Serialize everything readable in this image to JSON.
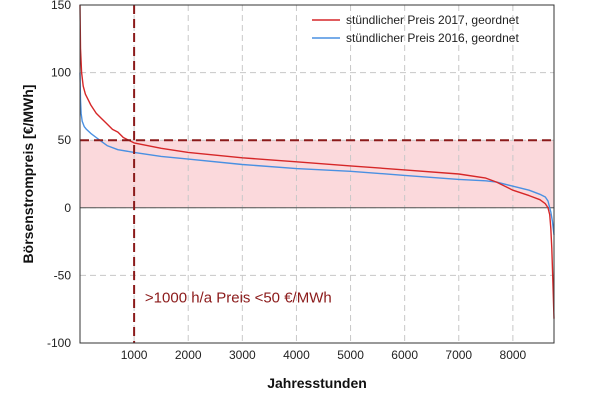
{
  "chart_data": {
    "type": "line",
    "title": "",
    "xlabel": "Jahresstunden",
    "ylabel": "Börsenstrompreis [€/MWh]",
    "xlim": [
      0,
      8760
    ],
    "ylim": [
      -100,
      150
    ],
    "x_ticks": [
      1000,
      2000,
      3000,
      4000,
      5000,
      6000,
      7000,
      8000
    ],
    "x_tick_labels": [
      "1000",
      "2000",
      "3000",
      "4000",
      "5000",
      "6000",
      "7000",
      "8000"
    ],
    "y_ticks": [
      -100,
      -50,
      0,
      50,
      100,
      150
    ],
    "y_tick_labels": [
      "-100",
      "-50",
      "0",
      "50",
      "100",
      "150"
    ],
    "grid": true,
    "legend_position": "top-right",
    "series": [
      {
        "name": "stündlicher Preis 2017, geordnet",
        "color": "#d62728",
        "x": [
          0,
          10,
          30,
          60,
          100,
          150,
          200,
          300,
          400,
          500,
          600,
          700,
          800,
          1000,
          1500,
          2000,
          3000,
          4000,
          5000,
          6000,
          7000,
          7500,
          7700,
          8000,
          8300,
          8500,
          8600,
          8650,
          8680,
          8700,
          8720,
          8740,
          8760
        ],
        "y": [
          150,
          118,
          100,
          90,
          84,
          80,
          76,
          70,
          66,
          62,
          58,
          56,
          52,
          48,
          44,
          41,
          37,
          34,
          31,
          28,
          25,
          22,
          19,
          13,
          9,
          6,
          3,
          0,
          -5,
          -15,
          -30,
          -55,
          -82
        ]
      },
      {
        "name": "stündlicher Preis 2016, geordnet",
        "color": "#4a90e2",
        "x": [
          0,
          10,
          20,
          40,
          80,
          120,
          200,
          300,
          400,
          500,
          700,
          1000,
          1500,
          2000,
          3000,
          4000,
          5000,
          6000,
          7000,
          7500,
          7700,
          8000,
          8300,
          8500,
          8600,
          8650,
          8680,
          8700,
          8730,
          8760
        ],
        "y": [
          100,
          80,
          70,
          64,
          60,
          58,
          55,
          52,
          49,
          46,
          43,
          41,
          38,
          36,
          32,
          29,
          27,
          24,
          21,
          20,
          19,
          16,
          13,
          10,
          8,
          5,
          0,
          -3,
          -10,
          -20
        ]
      }
    ],
    "reference_lines": [
      {
        "axis": "y",
        "value": 50,
        "color": "#8b1a1a"
      },
      {
        "axis": "x",
        "value": 1000,
        "color": "#8b1a1a"
      }
    ],
    "shaded_region": {
      "from_y": 0,
      "to_y": 50,
      "color": "#fbd9dc"
    },
    "annotation": {
      "text": ">1000 h/a Preis <50 €/MWh",
      "x": 1200,
      "y": -70,
      "color": "#8b1a1a"
    }
  }
}
